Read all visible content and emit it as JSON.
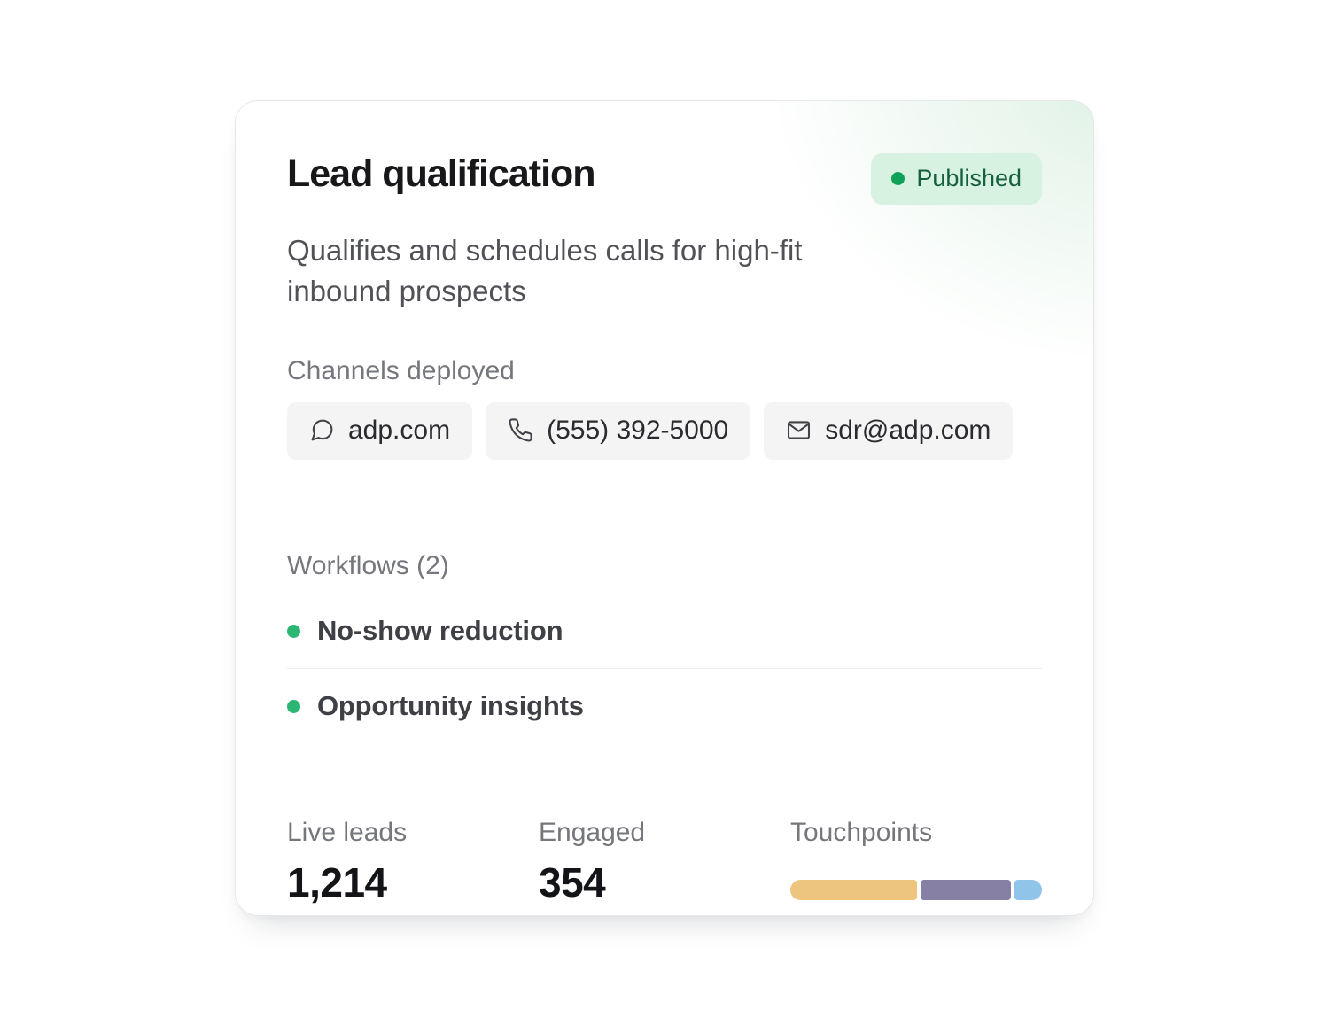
{
  "card": {
    "title": "Lead qualification",
    "status": {
      "label": "Published",
      "dot_color": "#0ea257",
      "bg_color": "#d8f2e2",
      "text_color": "#17603e"
    },
    "description": "Qualifies and schedules calls for high-fit inbound prospects",
    "channels": {
      "label": "Channels deployed",
      "items": [
        {
          "icon": "chat-icon",
          "label": "adp.com"
        },
        {
          "icon": "phone-icon",
          "label": "(555) 392-5000"
        },
        {
          "icon": "mail-icon",
          "label": "sdr@adp.com"
        }
      ]
    },
    "workflows": {
      "label": "Workflows (2)",
      "items": [
        {
          "label": "No-show reduction",
          "dot_color": "#2bb673"
        },
        {
          "label": "Opportunity insights",
          "dot_color": "#2bb673"
        }
      ]
    },
    "stats": [
      {
        "label": "Live leads",
        "value": "1,214"
      },
      {
        "label": "Engaged",
        "value": "354"
      },
      {
        "label": "Touchpoints",
        "type": "bar",
        "segments": [
          {
            "name": "segment-1",
            "color": "#edc57f",
            "weight": 143
          },
          {
            "name": "segment-2",
            "color": "#8681a4",
            "weight": 102
          },
          {
            "name": "segment-3",
            "color": "#90c4e8",
            "weight": 31
          }
        ]
      }
    ]
  }
}
